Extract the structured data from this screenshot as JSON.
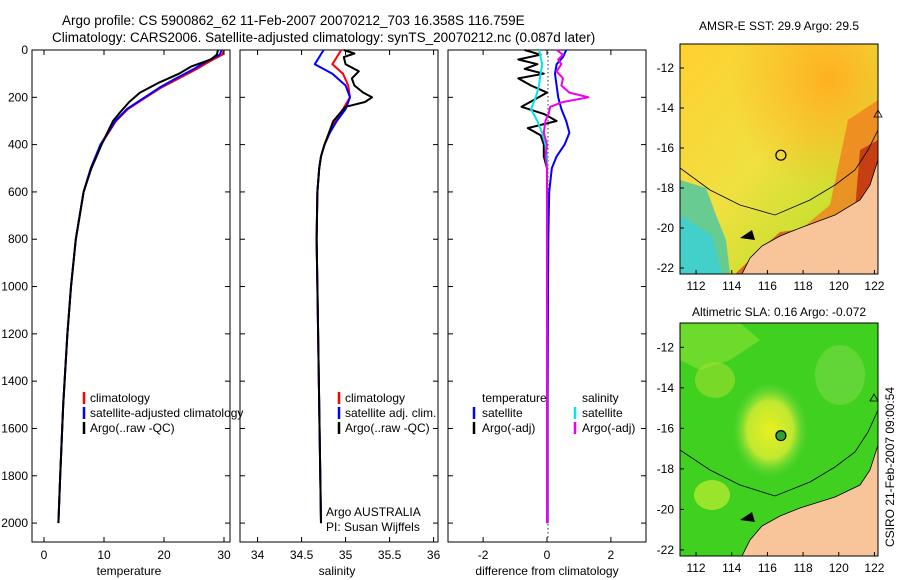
{
  "title": {
    "line1": "Argo profile: CS 5900862_62 11-Feb-2007 20070212_703 16.358S 116.759E",
    "line2": "Climatology: CARS2006. Satellite-adjusted climatology: synTS_20070212.nc (0.087d later)"
  },
  "colors": {
    "climatology": "#ff0000",
    "satellite": "#0000ff",
    "argo": "#000000",
    "sat_salinity": "#00e5ee",
    "argo_salinity": "#ee00ee",
    "land": "#f8c59a"
  },
  "chart_data": [
    {
      "type": "line",
      "name": "temperature-profile",
      "xlabel": "temperature",
      "ylabel": "",
      "xlim": [
        -2,
        31
      ],
      "ylim": [
        2080,
        0
      ],
      "xticks": [
        0,
        10,
        20,
        30
      ],
      "yticks": [
        0,
        200,
        400,
        600,
        800,
        1000,
        1200,
        1400,
        1600,
        1800,
        2000
      ],
      "legend": [
        "climatology",
        "satellite-adjusted climatology",
        "Argo(..raw -QC)"
      ],
      "series": [
        {
          "name": "climatology",
          "color": "#ff0000",
          "depth": [
            0,
            20,
            50,
            80,
            120,
            160,
            200,
            250,
            300,
            400,
            500,
            600,
            800,
            1000,
            1200,
            1500,
            1800,
            2000
          ],
          "value": [
            30.0,
            29.7,
            27.5,
            25.5,
            22.5,
            19.5,
            17.0,
            14.0,
            12.0,
            9.5,
            7.8,
            6.6,
            5.3,
            4.5,
            3.9,
            3.2,
            2.7,
            2.4
          ]
        },
        {
          "name": "satellite-adjusted climatology",
          "color": "#0000ff",
          "depth": [
            0,
            20,
            50,
            80,
            120,
            160,
            200,
            250,
            300,
            400,
            500,
            600,
            800,
            1000,
            1200,
            1500,
            1800,
            2000
          ],
          "value": [
            29.6,
            29.3,
            27.0,
            25.0,
            22.0,
            19.2,
            16.8,
            13.8,
            11.9,
            9.4,
            7.8,
            6.6,
            5.3,
            4.5,
            3.9,
            3.2,
            2.7,
            2.4
          ]
        },
        {
          "name": "Argo(..raw -QC)",
          "color": "#000000",
          "depth": [
            0,
            20,
            40,
            70,
            100,
            140,
            180,
            220,
            260,
            300,
            400,
            500,
            600,
            800,
            1000,
            1200,
            1500,
            1800,
            2000
          ],
          "value": [
            29.0,
            28.8,
            27.8,
            24.5,
            22.5,
            19.0,
            16.0,
            14.2,
            12.8,
            11.5,
            9.6,
            7.9,
            6.6,
            5.3,
            4.5,
            3.9,
            3.2,
            2.7,
            2.4
          ]
        }
      ]
    },
    {
      "type": "line",
      "name": "salinity-profile",
      "xlabel": "salinity",
      "ylabel": "",
      "xlim": [
        33.8,
        36.05
      ],
      "ylim": [
        2080,
        0
      ],
      "xticks": [
        34,
        34.5,
        35,
        35.5,
        36
      ],
      "yticks": [
        0,
        200,
        400,
        600,
        800,
        1000,
        1200,
        1400,
        1600,
        1800,
        2000
      ],
      "legend": [
        "climatology",
        "satellite adj. clim.",
        "Argo(..raw -QC)"
      ],
      "annotation": [
        "Argo AUSTRALIA",
        "PI: Susan Wijffels"
      ],
      "series": [
        {
          "name": "climatology",
          "color": "#ff0000",
          "depth": [
            0,
            30,
            60,
            100,
            150,
            200,
            250,
            300,
            350,
            400,
            450,
            500,
            600,
            800,
            1000,
            1500,
            2000
          ],
          "value": [
            34.95,
            34.9,
            34.85,
            34.97,
            35.03,
            35.05,
            34.97,
            34.88,
            34.82,
            34.76,
            34.72,
            34.7,
            34.68,
            34.67,
            34.68,
            34.7,
            34.72
          ]
        },
        {
          "name": "satellite adj. clim.",
          "color": "#0000ff",
          "depth": [
            0,
            30,
            60,
            100,
            150,
            200,
            250,
            300,
            350,
            400,
            450,
            500,
            600,
            800,
            1000,
            1500,
            2000
          ],
          "value": [
            34.75,
            34.7,
            34.65,
            34.85,
            35.0,
            35.05,
            35.0,
            34.9,
            34.82,
            34.76,
            34.72,
            34.7,
            34.68,
            34.67,
            34.68,
            34.7,
            34.72
          ]
        },
        {
          "name": "Argo(..raw -QC)",
          "color": "#000000",
          "depth": [
            0,
            15,
            30,
            60,
            90,
            120,
            150,
            180,
            200,
            220,
            240,
            270,
            300,
            350,
            400,
            450,
            500,
            600,
            800,
            1000,
            1500,
            2000
          ],
          "value": [
            34.98,
            35.1,
            34.98,
            35.0,
            35.15,
            35.07,
            35.1,
            35.2,
            35.3,
            35.22,
            35.0,
            34.93,
            34.86,
            34.81,
            34.76,
            34.72,
            34.7,
            34.68,
            34.67,
            34.68,
            34.7,
            34.72
          ]
        }
      ]
    },
    {
      "type": "line",
      "name": "difference-from-climatology",
      "xlabel": "difference from climatology",
      "ylabel": "",
      "xlim": [
        -3.1,
        3.1
      ],
      "ylim": [
        2080,
        0
      ],
      "xticks": [
        -2,
        0,
        2
      ],
      "yticks": [
        0,
        200,
        400,
        600,
        800,
        1000,
        1200,
        1400,
        1600,
        1800,
        2000
      ],
      "legend_temperature": [
        "temperature",
        "satellite",
        "Argo(-adj)"
      ],
      "legend_salinity": [
        "salinity",
        "satellite",
        "Argo(-adj)"
      ],
      "series": [
        {
          "name": "temperature satellite",
          "color": "#0000ff",
          "depth": [
            0,
            30,
            60,
            100,
            150,
            200,
            250,
            300,
            350,
            400,
            450,
            500,
            600,
            800,
            1000,
            1500,
            2000
          ],
          "value": [
            0.6,
            0.5,
            0.3,
            0.25,
            0.3,
            0.35,
            0.45,
            0.6,
            0.7,
            0.55,
            0.3,
            0.15,
            0.07,
            0.04,
            0.03,
            0.02,
            0.02
          ]
        },
        {
          "name": "temperature Argo(-adj)",
          "color": "#000000",
          "depth": [
            0,
            20,
            40,
            60,
            80,
            100,
            120,
            150,
            180,
            210,
            240,
            270,
            300,
            330,
            360,
            400,
            450,
            500,
            600,
            800,
            1000,
            1500,
            2000
          ],
          "value": [
            -0.7,
            -0.2,
            -0.9,
            -0.3,
            -0.7,
            -0.1,
            -0.9,
            -0.5,
            0.0,
            -0.4,
            -0.8,
            -0.1,
            0.3,
            -0.6,
            -0.2,
            -0.1,
            -0.1,
            0.0,
            0.0,
            0.0,
            0.0,
            0.0,
            0.0
          ]
        },
        {
          "name": "salinity satellite",
          "color": "#00e5ee",
          "depth": [
            0,
            30,
            60,
            100,
            150,
            200,
            250,
            300,
            350,
            400,
            450,
            500,
            600,
            800,
            1000,
            1500,
            2000
          ],
          "value": [
            -0.25,
            -0.2,
            -0.15,
            -0.2,
            -0.25,
            -0.35,
            -0.5,
            -0.3,
            -0.15,
            -0.05,
            0.0,
            0.0,
            0.0,
            0.0,
            0.0,
            0.0,
            0.0
          ]
        },
        {
          "name": "salinity Argo(-adj)",
          "color": "#ee00ee",
          "depth": [
            0,
            20,
            40,
            60,
            90,
            120,
            150,
            180,
            200,
            220,
            240,
            270,
            300,
            350,
            400,
            450,
            500,
            600,
            800,
            1000,
            1500,
            2000
          ],
          "value": [
            0.3,
            0.5,
            0.35,
            0.45,
            0.3,
            0.5,
            0.45,
            0.7,
            1.3,
            0.5,
            0.1,
            0.05,
            -0.05,
            -0.1,
            0.0,
            -0.05,
            0.0,
            0.0,
            0.0,
            0.0,
            0.0,
            0.0
          ]
        }
      ]
    },
    {
      "type": "heatmap",
      "name": "sst-map",
      "title": "AMSR-E SST: 29.9 Argo: 29.5",
      "xlim": [
        111.1,
        122.2
      ],
      "ylim": [
        -22.3,
        -10.8
      ],
      "xticks": [
        112,
        114,
        116,
        118,
        120,
        122
      ],
      "yticks": [
        -12,
        -14,
        -16,
        -18,
        -20,
        -22
      ],
      "marker": {
        "lon": 116.759,
        "lat": -16.358
      }
    },
    {
      "type": "heatmap",
      "name": "sla-map",
      "title": "Altimetric SLA: 0.16 Argo: -0.072",
      "xlim": [
        111.1,
        122.2
      ],
      "ylim": [
        -22.3,
        -10.8
      ],
      "xticks": [
        112,
        114,
        116,
        118,
        120,
        122
      ],
      "yticks": [
        -12,
        -14,
        -16,
        -18,
        -20,
        -22
      ],
      "marker": {
        "lon": 116.759,
        "lat": -16.358
      },
      "side_label": "CSIRO 21-Feb-2007 09:00:54"
    }
  ]
}
